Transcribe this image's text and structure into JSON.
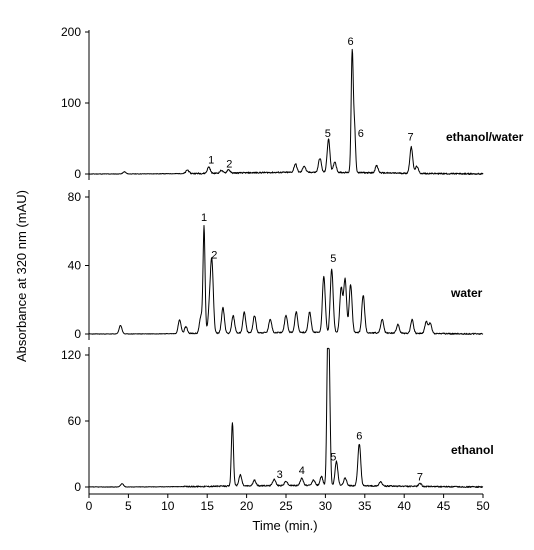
{
  "chart_data": {
    "type": "line",
    "ylabel": "Absorbance at 320 nm (mAU)",
    "xlabel": "Time (min.)",
    "x_ticks": [
      0,
      5,
      10,
      15,
      20,
      25,
      30,
      35,
      40,
      45,
      50
    ],
    "xlim": [
      0,
      50
    ],
    "panels": [
      {
        "series_label": "ethanol/water",
        "ylim": [
          0,
          200
        ],
        "y_ticks": [
          0,
          100,
          200
        ],
        "peaks": [
          {
            "x": 4.5,
            "y": 3
          },
          {
            "x": 12.5,
            "y": 5
          },
          {
            "x": 15.2,
            "y": 9
          },
          {
            "x": 16.8,
            "y": 4
          },
          {
            "x": 17.7,
            "y": 5
          },
          {
            "x": 26.2,
            "y": 12
          },
          {
            "x": 27.3,
            "y": 9
          },
          {
            "x": 29.3,
            "y": 20
          },
          {
            "x": 30.4,
            "y": 47
          },
          {
            "x": 31.2,
            "y": 15
          },
          {
            "x": 33.4,
            "y": 170
          },
          {
            "x": 33.7,
            "y": 60
          },
          {
            "x": 36.5,
            "y": 10
          },
          {
            "x": 40.9,
            "y": 37
          },
          {
            "x": 41.6,
            "y": 10
          }
        ],
        "annotations": [
          {
            "label": "1",
            "x": 15.5,
            "y": 15
          },
          {
            "label": "2",
            "x": 17.8,
            "y": 9
          },
          {
            "label": "5",
            "x": 30.3,
            "y": 52
          },
          {
            "label": "6",
            "x": 33.2,
            "y": 182
          },
          {
            "label": "6",
            "x": 34.5,
            "y": 52
          },
          {
            "label": "7",
            "x": 40.8,
            "y": 47
          }
        ]
      },
      {
        "series_label": "water",
        "ylim": [
          0,
          80
        ],
        "y_ticks": [
          0,
          40,
          80
        ],
        "peaks": [
          {
            "x": 4.0,
            "y": 5
          },
          {
            "x": 11.5,
            "y": 8
          },
          {
            "x": 12.3,
            "y": 4
          },
          {
            "x": 14.2,
            "y": 10
          },
          {
            "x": 14.6,
            "y": 62
          },
          {
            "x": 15.3,
            "y": 15
          },
          {
            "x": 15.6,
            "y": 40
          },
          {
            "x": 17.0,
            "y": 15
          },
          {
            "x": 18.3,
            "y": 10
          },
          {
            "x": 19.7,
            "y": 12
          },
          {
            "x": 21.0,
            "y": 10
          },
          {
            "x": 23.0,
            "y": 8
          },
          {
            "x": 25.0,
            "y": 10
          },
          {
            "x": 26.3,
            "y": 12
          },
          {
            "x": 28.0,
            "y": 12
          },
          {
            "x": 29.8,
            "y": 33
          },
          {
            "x": 30.8,
            "y": 37
          },
          {
            "x": 32.0,
            "y": 26
          },
          {
            "x": 32.5,
            "y": 31
          },
          {
            "x": 33.2,
            "y": 28
          },
          {
            "x": 34.8,
            "y": 22
          },
          {
            "x": 37.2,
            "y": 8
          },
          {
            "x": 39.2,
            "y": 5
          },
          {
            "x": 41.0,
            "y": 8
          },
          {
            "x": 42.8,
            "y": 7
          },
          {
            "x": 43.3,
            "y": 6
          }
        ],
        "annotations": [
          {
            "label": "1",
            "x": 14.6,
            "y": 66
          },
          {
            "label": "2",
            "x": 15.9,
            "y": 44
          },
          {
            "label": "5",
            "x": 31.0,
            "y": 42
          }
        ]
      },
      {
        "series_label": "ethanol",
        "ylim": [
          0,
          120
        ],
        "y_ticks": [
          0,
          60,
          120
        ],
        "peaks": [
          {
            "x": 4.2,
            "y": 3
          },
          {
            "x": 18.2,
            "y": 58
          },
          {
            "x": 19.2,
            "y": 10
          },
          {
            "x": 21.0,
            "y": 5
          },
          {
            "x": 23.5,
            "y": 6
          },
          {
            "x": 25.0,
            "y": 4
          },
          {
            "x": 27.0,
            "y": 7
          },
          {
            "x": 28.5,
            "y": 5
          },
          {
            "x": 29.5,
            "y": 8
          },
          {
            "x": 30.3,
            "y": 125
          },
          {
            "x": 30.5,
            "y": 85
          },
          {
            "x": 31.4,
            "y": 22
          },
          {
            "x": 32.5,
            "y": 7
          },
          {
            "x": 34.3,
            "y": 38
          },
          {
            "x": 37.0,
            "y": 4
          },
          {
            "x": 42.0,
            "y": 3
          }
        ],
        "annotations": [
          {
            "label": "3",
            "x": 24.2,
            "y": 8
          },
          {
            "label": "4",
            "x": 27.0,
            "y": 12
          },
          {
            "label": "5",
            "x": 31.0,
            "y": 24
          },
          {
            "label": "6",
            "x": 34.3,
            "y": 43
          },
          {
            "label": "7",
            "x": 42.0,
            "y": 6
          }
        ]
      }
    ]
  }
}
